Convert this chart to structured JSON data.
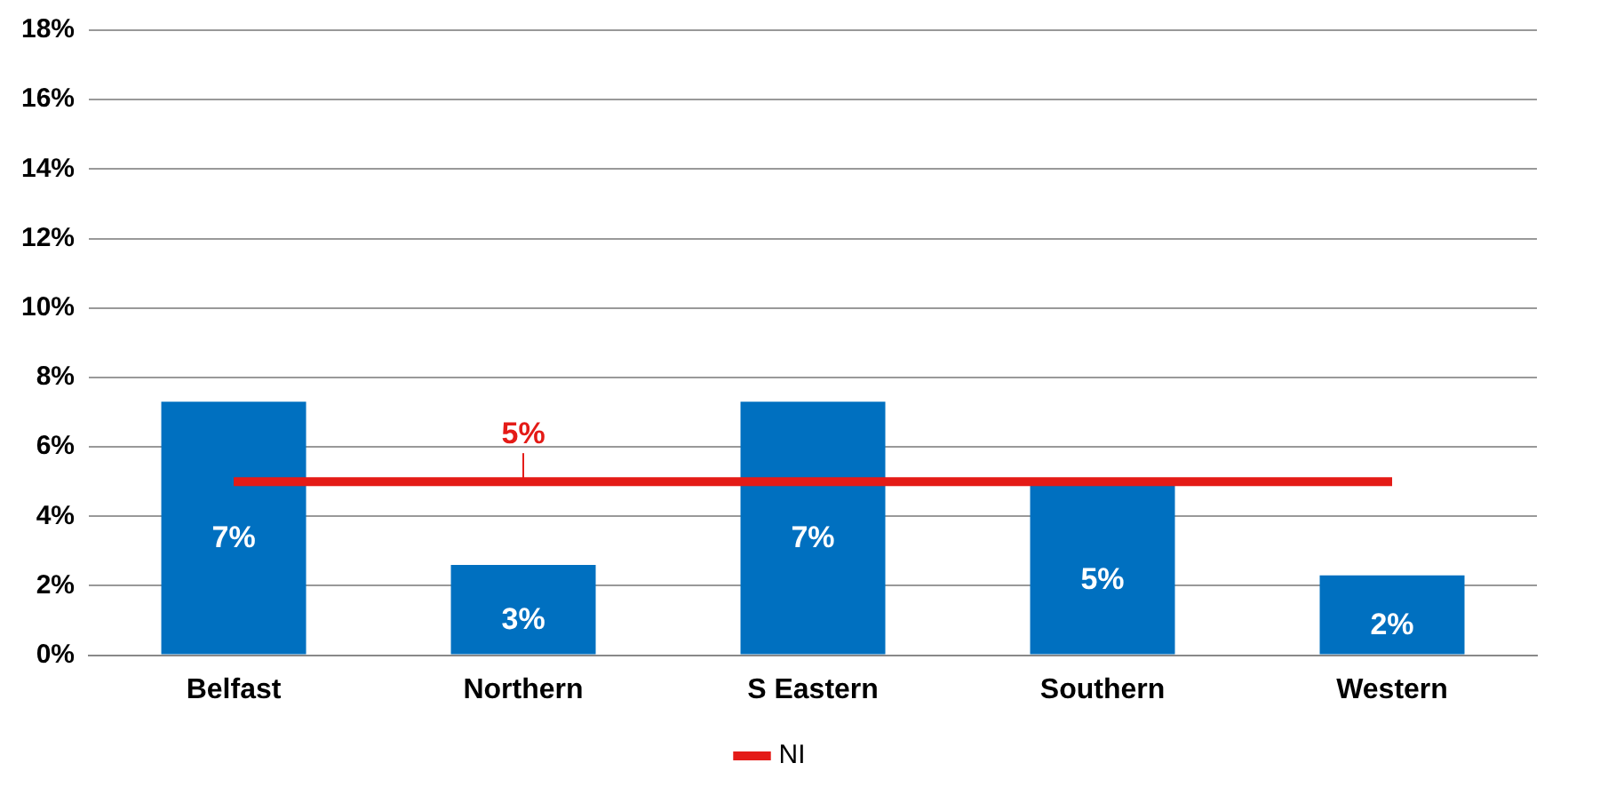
{
  "chart_data": {
    "type": "bar",
    "categories": [
      "Belfast",
      "Northern",
      "S Eastern",
      "Southern",
      "Western"
    ],
    "series": [
      {
        "color": "#0070c0",
        "values": [
          7.3,
          2.6,
          7.3,
          4.9,
          2.3
        ],
        "value_labels": [
          "7%",
          "3%",
          "7%",
          "5%",
          "2%"
        ]
      },
      {
        "type": "line",
        "name": "NI",
        "color": "#e41b17",
        "values": [
          5,
          5,
          5,
          5,
          5
        ],
        "value_labels": [
          null,
          "5%",
          null,
          null,
          null
        ],
        "marker": "none"
      }
    ],
    "ylim": [
      0,
      18
    ],
    "yticks": [
      {
        "value": 0,
        "label": "0%"
      },
      {
        "value": 2,
        "label": "2%"
      },
      {
        "value": 4,
        "label": "4%"
      },
      {
        "value": 6,
        "label": "6%"
      },
      {
        "value": 8,
        "label": "8%"
      },
      {
        "value": 10,
        "label": "10%"
      },
      {
        "value": 12,
        "label": "12%"
      },
      {
        "value": 14,
        "label": "14%"
      },
      {
        "value": 16,
        "label": "16%"
      },
      {
        "value": 18,
        "label": "18%"
      }
    ],
    "grid": "y",
    "legend": "bottom"
  }
}
